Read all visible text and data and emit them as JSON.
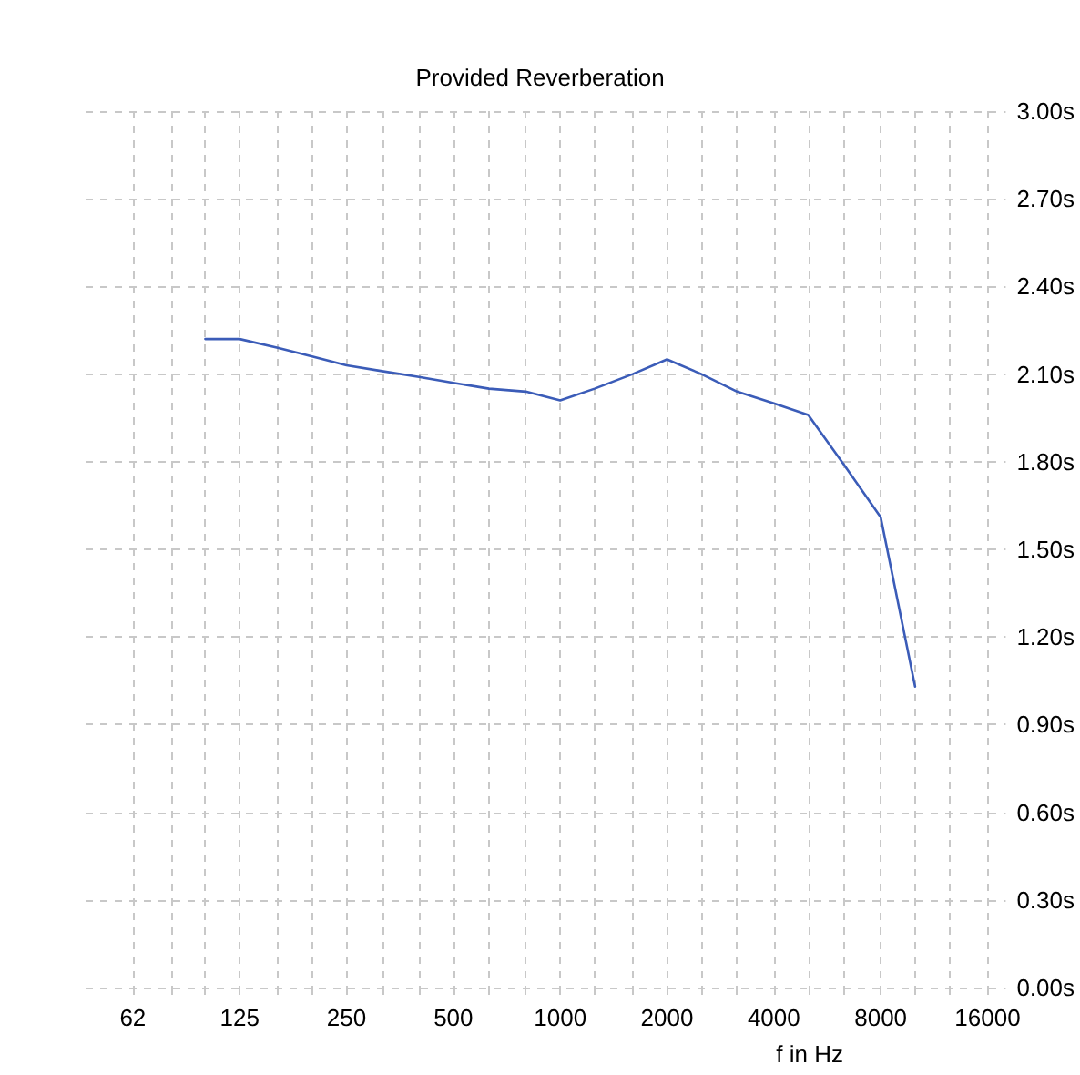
{
  "chart_data": {
    "type": "line",
    "title": "Provided Reverberation",
    "xlabel": "f in Hz",
    "log": "x",
    "x": [
      100,
      125,
      160,
      200,
      250,
      315,
      400,
      500,
      630,
      800,
      1000,
      1250,
      1600,
      2000,
      2500,
      3150,
      4000,
      5000,
      6300,
      8000,
      10000
    ],
    "series": [
      {
        "color": "#3b5cb8",
        "values": [
          2.22,
          2.22,
          2.19,
          2.16,
          2.13,
          2.11,
          2.09,
          2.07,
          2.05,
          2.04,
          2.01,
          2.05,
          2.1,
          2.15,
          2.1,
          2.04,
          2.0,
          1.96,
          1.79,
          1.61,
          1.03
        ]
      }
    ],
    "xlim": [
      46,
      18000
    ],
    "xticks": [
      {
        "value": 62.5,
        "label": "62"
      },
      {
        "value": 80,
        "label": null
      },
      {
        "value": 100,
        "label": null
      },
      125,
      {
        "value": 160,
        "label": null
      },
      {
        "value": 200,
        "label": null
      },
      250,
      {
        "value": 315,
        "label": null
      },
      {
        "value": 400,
        "label": null
      },
      500,
      {
        "value": 630,
        "label": null
      },
      {
        "value": 800,
        "label": null
      },
      1000,
      {
        "value": 1250,
        "label": null
      },
      {
        "value": 1600,
        "label": null
      },
      2000,
      {
        "value": 2500,
        "label": null
      },
      {
        "value": 3150,
        "label": null
      },
      4000,
      {
        "value": 5000,
        "label": null
      },
      {
        "value": 6300,
        "label": null
      },
      8000,
      {
        "value": 10000,
        "label": null
      },
      {
        "value": 12500,
        "label": null
      },
      16000
    ],
    "ylim": [
      0,
      3
    ],
    "yticks": [
      {
        "value": 0,
        "label": "0.00s"
      },
      {
        "value": 0.3,
        "label": "0.30s"
      },
      {
        "value": 0.6,
        "label": "0.60s"
      },
      {
        "value": 0.9,
        "label": "0.90s"
      },
      {
        "value": 1.2,
        "label": "1.20s"
      },
      {
        "value": 1.5,
        "label": "1.50s"
      },
      {
        "value": 1.8,
        "label": "1.80s"
      },
      {
        "value": 2.1,
        "label": "2.10s"
      },
      {
        "value": 2.4,
        "label": "2.40s"
      },
      {
        "value": 2.7,
        "label": "2.70s"
      },
      {
        "value": 3.0,
        "label": "3.00s"
      }
    ],
    "grid": true,
    "marker": "none",
    "line_style": "solid"
  }
}
